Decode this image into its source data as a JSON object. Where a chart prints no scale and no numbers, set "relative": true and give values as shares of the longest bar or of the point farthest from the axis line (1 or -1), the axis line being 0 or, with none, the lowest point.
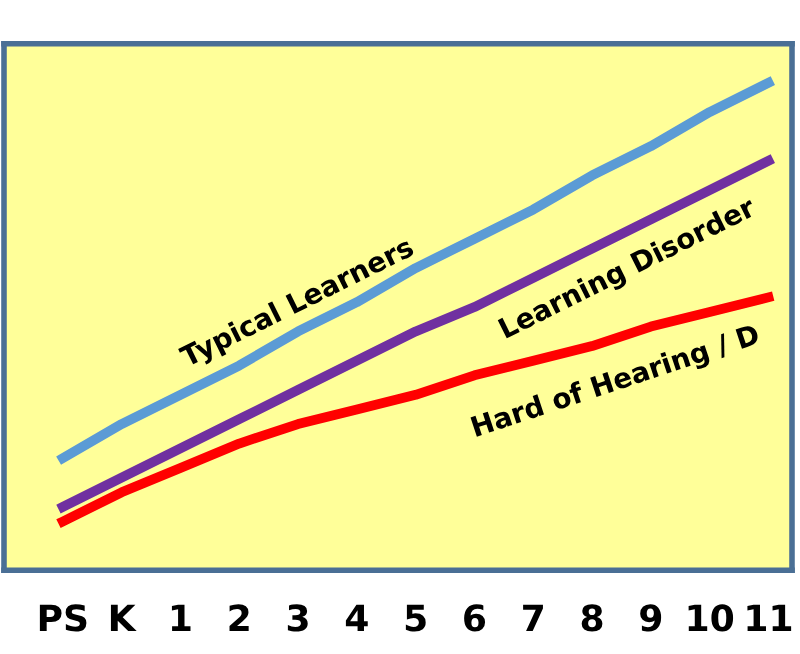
{
  "chart_data": {
    "type": "line",
    "relative": true,
    "legend": false,
    "grid": false,
    "marker": "none",
    "line_style": "solid",
    "categories": [
      "PS",
      "K",
      "1",
      "2",
      "3",
      "4",
      "5",
      "6",
      "7",
      "8",
      "9",
      "10",
      "11"
    ],
    "series": [
      {
        "name": "Typical Learners",
        "color": "#5b9bd5",
        "values": [
          0.23,
          0.3,
          0.36,
          0.42,
          0.49,
          0.55,
          0.62,
          0.68,
          0.74,
          0.81,
          0.87,
          0.94,
          1.0
        ]
      },
      {
        "name": "Learning Disorder",
        "color": "#7030a0",
        "values": [
          0.13,
          0.19,
          0.25,
          0.31,
          0.37,
          0.43,
          0.49,
          0.54,
          0.6,
          0.66,
          0.72,
          0.78,
          0.84
        ]
      },
      {
        "name": "Hard of Hearing / D",
        "color": "#ff0000",
        "values": [
          0.1,
          0.16,
          0.21,
          0.26,
          0.3,
          0.33,
          0.36,
          0.4,
          0.43,
          0.46,
          0.5,
          0.53,
          0.56
        ]
      }
    ]
  }
}
